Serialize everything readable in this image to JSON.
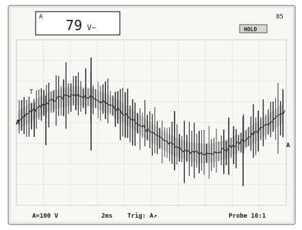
{
  "screen": {
    "colors": {
      "bezel": "#cfcfcf",
      "screen_bg": "#f7f7f4",
      "grid": "#bdbdbd",
      "trace": "#2a2a2a",
      "text": "#1a1a1a",
      "hold_bg": "#d6d6d6"
    }
  },
  "reading": {
    "channel_marker": "A",
    "value": "79",
    "unit": "V~"
  },
  "indicators": {
    "top_right": "85",
    "hold": "HOLD"
  },
  "trace": {
    "channel_label": "A",
    "right_marker": "A",
    "mid_marker": "T",
    "waveform": "noisy sine with high-frequency spikes (PWM-like)"
  },
  "status_bar": {
    "vdiv": "A=100 V",
    "timebase": "2ms",
    "trigger": "Trig: A↗",
    "probe": "Probe 10:1"
  }
}
